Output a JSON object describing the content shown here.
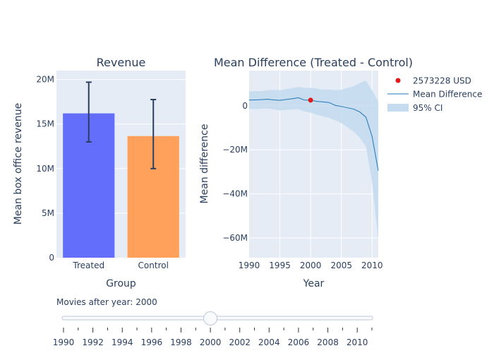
{
  "chart_data": [
    {
      "type": "bar",
      "title": "Revenue",
      "xlabel": "Group",
      "ylabel": "Mean box office revenue",
      "categories": [
        "Treated",
        "Control"
      ],
      "values": [
        16200000,
        13650000
      ],
      "error_low": [
        13000000,
        10000000
      ],
      "error_high": [
        19700000,
        17750000
      ],
      "colors": [
        "#636efa",
        "#ffa15a"
      ],
      "ylim": [
        0,
        21000000
      ],
      "yticks": [
        0,
        5000000,
        10000000,
        15000000,
        20000000
      ],
      "ytick_labels": [
        "0",
        "5M",
        "10M",
        "15M",
        "20M"
      ],
      "grid": true
    },
    {
      "type": "line",
      "title": "Mean Difference (Treated - Control)",
      "xlabel": "Year",
      "ylabel": "Mean difference",
      "x": [
        1990,
        1991,
        1992,
        1993,
        1994,
        1995,
        1996,
        1997,
        1998,
        1999,
        2000,
        2001,
        2002,
        2003,
        2004,
        2005,
        2006,
        2007,
        2008,
        2009,
        2010,
        2011
      ],
      "series": [
        {
          "name": "Mean Difference",
          "color": "#1f77b4",
          "values": [
            2600000,
            2700000,
            2800000,
            3000000,
            2700000,
            2500000,
            2900000,
            3200000,
            3700000,
            2600000,
            2573228,
            2000000,
            1800000,
            1500000,
            200000,
            -300000,
            -900000,
            -1500000,
            -2800000,
            -5200000,
            -14000000,
            -29500000
          ]
        },
        {
          "name": "95% CI",
          "color": "#c5dcf0",
          "upper": [
            6500000,
            6700000,
            6700000,
            7000000,
            7300000,
            7100000,
            7600000,
            8000000,
            8600000,
            8200000,
            8200000,
            7900000,
            7300000,
            7400000,
            7200000,
            7300000,
            8100000,
            8900000,
            10300000,
            11500000,
            7000000,
            2000000
          ],
          "lower": [
            -1300000,
            -1500000,
            -1300000,
            -1200000,
            -1600000,
            -2100000,
            -1900000,
            -1600000,
            -1500000,
            -2600000,
            -3100000,
            -4000000,
            -4800000,
            -5500000,
            -6600000,
            -7800000,
            -9800000,
            -11800000,
            -14500000,
            -18500000,
            -35000000,
            -61000000
          ]
        }
      ],
      "highlight_point": {
        "x": 2000,
        "y": 2573228,
        "label": "2573228 USD",
        "color": "#e31a1c"
      },
      "xlim": [
        1990,
        2011
      ],
      "ylim": [
        -69000000,
        16000000
      ],
      "xticks": [
        1990,
        1995,
        2000,
        2005,
        2010
      ],
      "yticks": [
        0,
        -20000000,
        -40000000,
        -60000000
      ],
      "ytick_labels": [
        "0",
        "−20M",
        "−40M",
        "−60M"
      ],
      "legend_position": "top-right",
      "grid": true
    }
  ],
  "slider": {
    "label": "Movies after year: 2000",
    "value": 2000,
    "min": 1990,
    "max": 2011,
    "tick_labels": [
      "1990",
      "1992",
      "1994",
      "1996",
      "1998",
      "2000",
      "2002",
      "2004",
      "2006",
      "2008",
      "2010"
    ]
  }
}
